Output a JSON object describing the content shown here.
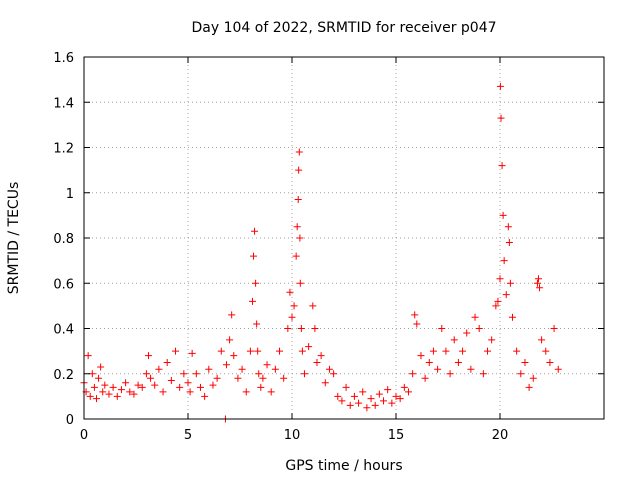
{
  "chart_data": {
    "type": "scatter",
    "title": "Day 104 of 2022, SRMTID for receiver p047",
    "xlabel": "GPS time / hours",
    "ylabel": "SRMTID / TECUs",
    "xlim": [
      0,
      25
    ],
    "ylim": [
      0,
      1.6
    ],
    "xticks": [
      0,
      5,
      10,
      15,
      20
    ],
    "xtick_labels": [
      "0",
      "5",
      "10",
      "15",
      "20"
    ],
    "yticks": [
      0,
      0.2,
      0.4,
      0.6,
      0.8,
      1.0,
      1.2,
      1.4,
      1.6
    ],
    "ytick_labels": [
      "0",
      "0.2",
      "0.4",
      "0.6",
      "0.8",
      "1",
      "1.2",
      "1.4",
      "1.6"
    ],
    "grid": true,
    "marker": "+",
    "series": [
      {
        "name": "SRMTID",
        "color": "#ff0000",
        "x": [
          0.0,
          0.1,
          0.2,
          0.3,
          0.4,
          0.5,
          0.6,
          0.7,
          0.8,
          0.9,
          1.0,
          1.2,
          1.4,
          1.6,
          1.8,
          2.0,
          2.2,
          2.4,
          2.6,
          2.8,
          3.0,
          3.1,
          3.2,
          3.4,
          3.6,
          3.8,
          4.0,
          4.2,
          4.4,
          4.6,
          4.8,
          5.0,
          5.1,
          5.2,
          5.4,
          5.6,
          5.8,
          6.0,
          6.2,
          6.4,
          6.6,
          6.8,
          6.85,
          7.0,
          7.1,
          7.2,
          7.4,
          7.6,
          7.8,
          8.0,
          8.1,
          8.15,
          8.2,
          8.25,
          8.3,
          8.35,
          8.4,
          8.5,
          8.6,
          8.8,
          9.0,
          9.2,
          9.4,
          9.6,
          9.8,
          9.9,
          10.0,
          10.1,
          10.2,
          10.25,
          10.3,
          10.32,
          10.35,
          10.38,
          10.4,
          10.45,
          10.5,
          10.6,
          10.8,
          11.0,
          11.1,
          11.2,
          11.4,
          11.6,
          11.8,
          12.0,
          12.2,
          12.4,
          12.6,
          12.8,
          13.0,
          13.2,
          13.4,
          13.6,
          13.8,
          14.0,
          14.2,
          14.4,
          14.6,
          14.8,
          15.0,
          15.2,
          15.4,
          15.6,
          15.8,
          15.9,
          16.0,
          16.2,
          16.4,
          16.6,
          16.8,
          17.0,
          17.2,
          17.4,
          17.6,
          17.8,
          18.0,
          18.2,
          18.4,
          18.6,
          18.8,
          19.0,
          19.2,
          19.4,
          19.6,
          19.8,
          19.9,
          20.0,
          20.02,
          20.05,
          20.1,
          20.15,
          20.2,
          20.3,
          20.4,
          20.45,
          20.5,
          20.6,
          20.8,
          21.0,
          21.2,
          21.4,
          21.6,
          21.8,
          21.85,
          21.9,
          22.0,
          22.2,
          22.4,
          22.6,
          22.8
        ],
        "y": [
          0.16,
          0.12,
          0.28,
          0.1,
          0.2,
          0.14,
          0.09,
          0.18,
          0.23,
          0.12,
          0.15,
          0.11,
          0.14,
          0.1,
          0.13,
          0.16,
          0.12,
          0.11,
          0.15,
          0.14,
          0.2,
          0.28,
          0.18,
          0.15,
          0.22,
          0.12,
          0.25,
          0.17,
          0.3,
          0.14,
          0.2,
          0.16,
          0.12,
          0.29,
          0.2,
          0.14,
          0.1,
          0.22,
          0.15,
          0.18,
          0.3,
          0.0,
          0.24,
          0.35,
          0.46,
          0.28,
          0.18,
          0.22,
          0.12,
          0.3,
          0.52,
          0.72,
          0.83,
          0.6,
          0.42,
          0.3,
          0.2,
          0.14,
          0.18,
          0.24,
          0.12,
          0.22,
          0.3,
          0.18,
          0.4,
          0.56,
          0.45,
          0.5,
          0.72,
          0.85,
          0.97,
          1.1,
          1.18,
          0.8,
          0.6,
          0.4,
          0.3,
          0.2,
          0.32,
          0.5,
          0.4,
          0.25,
          0.28,
          0.16,
          0.22,
          0.2,
          0.1,
          0.08,
          0.14,
          0.06,
          0.1,
          0.07,
          0.12,
          0.05,
          0.09,
          0.06,
          0.11,
          0.08,
          0.13,
          0.07,
          0.1,
          0.09,
          0.14,
          0.12,
          0.2,
          0.46,
          0.42,
          0.28,
          0.18,
          0.25,
          0.3,
          0.22,
          0.4,
          0.3,
          0.2,
          0.35,
          0.25,
          0.3,
          0.38,
          0.22,
          0.45,
          0.4,
          0.2,
          0.3,
          0.35,
          0.5,
          0.52,
          0.62,
          1.47,
          1.33,
          1.12,
          0.9,
          0.7,
          0.55,
          0.85,
          0.78,
          0.6,
          0.45,
          0.3,
          0.2,
          0.25,
          0.14,
          0.18,
          0.6,
          0.62,
          0.58,
          0.35,
          0.3,
          0.25,
          0.4,
          0.22
        ]
      }
    ]
  }
}
